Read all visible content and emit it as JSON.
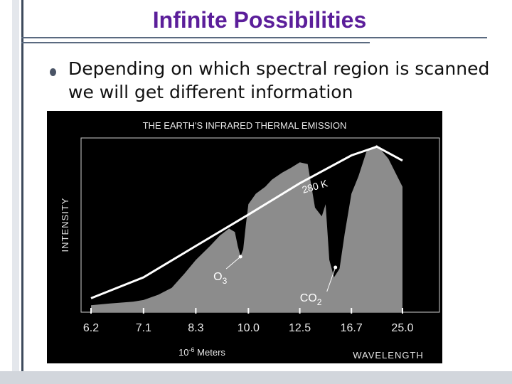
{
  "slide": {
    "title": "Infinite Possibilities",
    "bullet": "Depending on which spectral region is scanned we will get different information"
  },
  "colors": {
    "title": "#5b1e9a",
    "chart_bg": "#000000",
    "spectrum_fill": "#8c8c8c",
    "curve": "#ffffff"
  },
  "chart_data": {
    "type": "area",
    "title": "THE EARTH'S INFRARED THERMAL EMISSION",
    "ylabel": "INTENSITY",
    "xlabel_unit_prefix": "10",
    "xlabel_unit_exp": "-6",
    "xlabel_unit_suffix": " Meters",
    "xlabel": "WAVELENGTH",
    "x_scale": "reciprocal (wavenumber)",
    "x_ticks": [
      "6.2",
      "7.1",
      "8.3",
      "10.0",
      "12.5",
      "16.7",
      "25.0"
    ],
    "ylim": [
      0,
      1
    ],
    "grid": false,
    "series": [
      {
        "name": "",
        "kind": "measured emission spectrum",
        "x": [
          6.2,
          6.5,
          6.9,
          7.1,
          7.4,
          7.7,
          8.0,
          8.3,
          8.7,
          9.0,
          9.3,
          9.5,
          9.6,
          9.7,
          9.8,
          9.9,
          10.0,
          10.3,
          10.7,
          11.0,
          11.5,
          12.0,
          12.5,
          13.0,
          13.5,
          14.0,
          14.3,
          14.6,
          15.0,
          15.5,
          16.0,
          16.7,
          17.5,
          18.5,
          20.0,
          22.0,
          25.0
        ],
        "values": [
          0.04,
          0.05,
          0.06,
          0.07,
          0.1,
          0.14,
          0.22,
          0.3,
          0.38,
          0.44,
          0.48,
          0.46,
          0.38,
          0.32,
          0.36,
          0.5,
          0.62,
          0.68,
          0.72,
          0.76,
          0.8,
          0.83,
          0.86,
          0.85,
          0.6,
          0.55,
          0.62,
          0.3,
          0.2,
          0.25,
          0.45,
          0.68,
          0.78,
          0.92,
          0.96,
          0.88,
          0.72
        ]
      },
      {
        "name": "280 K",
        "kind": "blackbody curve",
        "x": [
          6.2,
          7.1,
          8.3,
          10.0,
          12.5,
          16.7,
          20.0,
          25.0
        ],
        "values": [
          0.08,
          0.2,
          0.38,
          0.56,
          0.74,
          0.9,
          0.95,
          0.87
        ]
      }
    ],
    "annotations": [
      {
        "text": "280 K",
        "x": 15.0
      },
      {
        "text_base": "O",
        "text_sub": "3",
        "x": 9.7
      },
      {
        "text_base": "CO",
        "text_sub": "2",
        "x": 15.0
      }
    ]
  }
}
